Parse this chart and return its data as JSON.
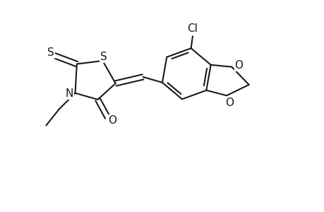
{
  "bg_color": "#ffffff",
  "line_color": "#1a1a1a",
  "line_width": 1.5,
  "font_size": 11,
  "fig_width": 4.6,
  "fig_height": 3.0,
  "dpi": 100,
  "xlim": [
    0,
    10
  ],
  "ylim": [
    0,
    6.5
  ]
}
